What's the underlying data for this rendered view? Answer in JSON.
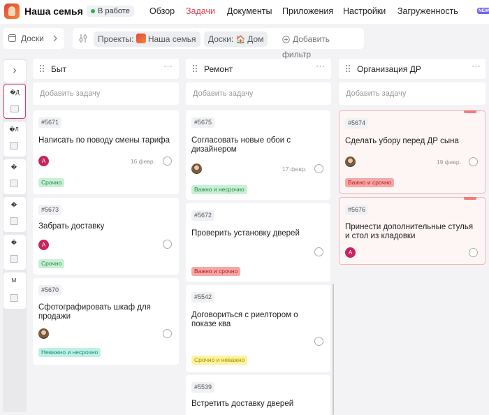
{
  "header": {
    "project_title": "Наша семья",
    "status": "В работе",
    "nav": [
      "Обзор",
      "Задачи",
      "Документы",
      "Приложения",
      "Настройки",
      "Загруженность"
    ],
    "new_badge": "NEW",
    "active_nav": "Задачи"
  },
  "filters": {
    "boards_label": "Доски",
    "projects_label": "Проекты:",
    "project_value": "Наша семья",
    "boards_filter_label": "Доски:",
    "board_value": "Дом",
    "add_filter": "Добавить фильтр"
  },
  "rail": {
    "cards": [
      "�Д",
      "�Л",
      "�",
      "�",
      "�",
      "М"
    ]
  },
  "add_task_label": "Добавить задачу",
  "columns": [
    {
      "title": "Быт",
      "cards": [
        {
          "id": "#5671",
          "title": "Написать по поводу смены тарифа",
          "avatar": "А",
          "date": "16 февр.",
          "tag": "Срочно"
        },
        {
          "id": "#5673",
          "title": "Забрать доставку",
          "avatar": "А",
          "tag": "Срочно"
        },
        {
          "id": "#5670",
          "title": "Сфотографировать шкаф для продажи",
          "tag": "Неважно и несрочно"
        }
      ]
    },
    {
      "title": "Ремонт",
      "cards": [
        {
          "id": "#5675",
          "title": "Согласовать новые обои с дизайнером",
          "date": "17 февр.",
          "tag": "Важно и несрочно"
        },
        {
          "id": "#5672",
          "title": "Проверить установку дверей",
          "tag": "Важно и срочно"
        },
        {
          "id": "#5542",
          "title": "Договориться с риелтором о показе ква",
          "tag": "Срочно и неважно"
        },
        {
          "id": "#5539",
          "title": "Встретить доставку дверей"
        }
      ]
    },
    {
      "title": "Организация ДР",
      "cards": [
        {
          "id": "#5674",
          "title": "Сделать убору перед ДР сына",
          "date": "19 февр.",
          "tag": "Важно и срочно"
        },
        {
          "id": "#5676",
          "title": "Принести дополнительные стулья и стол из кладовки",
          "avatar": "А"
        }
      ]
    }
  ],
  "colors": {
    "accent": "#e2435a",
    "status_green": "#2fb344",
    "tag_green": "#c8f0d4",
    "tag_red": "#f7a7a7",
    "tag_yellow": "#fff39a",
    "tag_teal": "#bff0e5",
    "avatar_letter": "#c8245e"
  },
  "icons": [
    "logo-icon",
    "status-dot-icon",
    "boards-icon",
    "filter-settings-icon",
    "add-filter-icon",
    "expand-chevron-icon",
    "drag-handle-icon",
    "more-icon",
    "checkbox-icon"
  ]
}
